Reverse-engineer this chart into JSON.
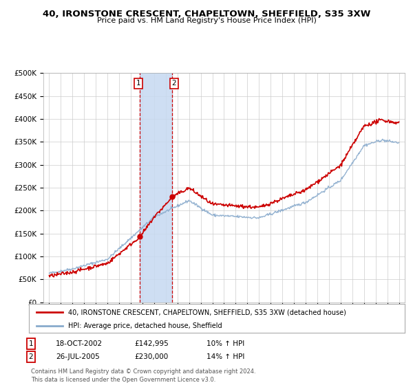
{
  "title": "40, IRONSTONE CRESCENT, CHAPELTOWN, SHEFFIELD, S35 3XW",
  "subtitle": "Price paid vs. HM Land Registry's House Price Index (HPI)",
  "background_color": "#ffffff",
  "plot_bg_color": "#ffffff",
  "grid_color": "#cccccc",
  "highlight_color": "#c6d9f1",
  "vline_color": "#cc0000",
  "red_line_color": "#cc0000",
  "blue_line_color": "#88aacc",
  "transactions": [
    {
      "date": 2002.79,
      "value": 142995,
      "label": "1"
    },
    {
      "date": 2005.56,
      "value": 230000,
      "label": "2"
    }
  ],
  "legend_entries": [
    "40, IRONSTONE CRESCENT, CHAPELTOWN, SHEFFIELD, S35 3XW (detached house)",
    "HPI: Average price, detached house, Sheffield"
  ],
  "table_entries": [
    {
      "num": "1",
      "date": "18-OCT-2002",
      "price": "£142,995",
      "hpi": "10% ↑ HPI"
    },
    {
      "num": "2",
      "date": "26-JUL-2005",
      "price": "£230,000",
      "hpi": "14% ↑ HPI"
    }
  ],
  "footer": "Contains HM Land Registry data © Crown copyright and database right 2024.\nThis data is licensed under the Open Government Licence v3.0.",
  "ylim": [
    0,
    500000
  ],
  "yticks": [
    0,
    50000,
    100000,
    150000,
    200000,
    250000,
    300000,
    350000,
    400000,
    450000,
    500000
  ],
  "xlim_start": 1994.5,
  "xlim_end": 2025.5
}
